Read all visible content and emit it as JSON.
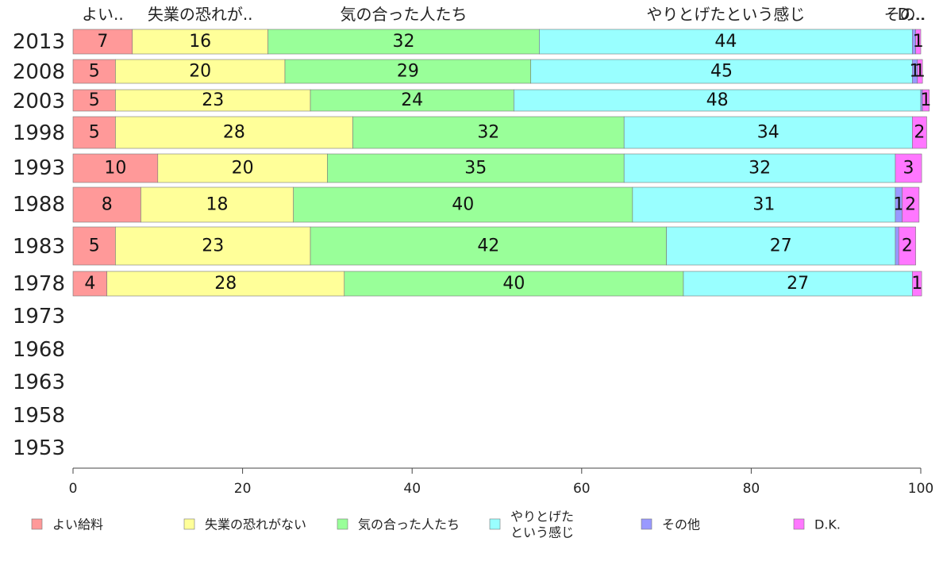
{
  "chart_data": {
    "type": "bar",
    "orientation": "horizontal",
    "stacked": true,
    "categories": [
      "2013",
      "2008",
      "2003",
      "1998",
      "1993",
      "1988",
      "1983",
      "1978",
      "1973",
      "1968",
      "1963",
      "1958",
      "1953"
    ],
    "series": [
      {
        "name": "よい給料",
        "top_label": "よい..",
        "color": "#ff9999",
        "values": [
          7,
          5,
          5,
          5,
          10,
          8,
          5,
          4,
          null,
          null,
          null,
          null,
          null
        ]
      },
      {
        "name": "失業の恐れがない",
        "top_label": "失業の恐れが..",
        "color": "#ffff99",
        "values": [
          16,
          20,
          23,
          28,
          20,
          18,
          23,
          28,
          null,
          null,
          null,
          null,
          null
        ]
      },
      {
        "name": "気の合った人たち",
        "top_label": "気の合った人たち",
        "color": "#99ff99",
        "values": [
          32,
          29,
          24,
          32,
          35,
          40,
          42,
          40,
          null,
          null,
          null,
          null,
          null
        ]
      },
      {
        "name": [
          "やりとげた",
          "という感じ"
        ],
        "top_label": "やりとげたという感じ",
        "color": "#99ffff",
        "values": [
          44,
          45,
          48,
          34,
          32,
          31,
          27,
          27,
          null,
          null,
          null,
          null,
          null
        ]
      },
      {
        "name": "その他",
        "top_label": "その..",
        "color": "#9999ff",
        "values": [
          0.4,
          0.6,
          0.2,
          0,
          0,
          0.8,
          0.4,
          0,
          null,
          null,
          null,
          null,
          null
        ],
        "labels": [
          "",
          "1",
          "",
          "",
          "",
          "1",
          "",
          "",
          null,
          null,
          null,
          null,
          null
        ]
      },
      {
        "name": "D.K.",
        "top_label": "D...",
        "color": "#ff77ff",
        "values": [
          0.6,
          0.6,
          0.8,
          1.7,
          3.1,
          2,
          2,
          1.1,
          null,
          null,
          null,
          null,
          null
        ],
        "labels": [
          "1",
          "1",
          "1",
          "2",
          "3",
          "2",
          "2",
          "1",
          null,
          null,
          null,
          null,
          null
        ]
      }
    ],
    "xlim": [
      0,
      100
    ],
    "xticks": [
      0,
      20,
      40,
      60,
      80,
      100
    ],
    "grid": false,
    "legend_position": "bottom"
  }
}
